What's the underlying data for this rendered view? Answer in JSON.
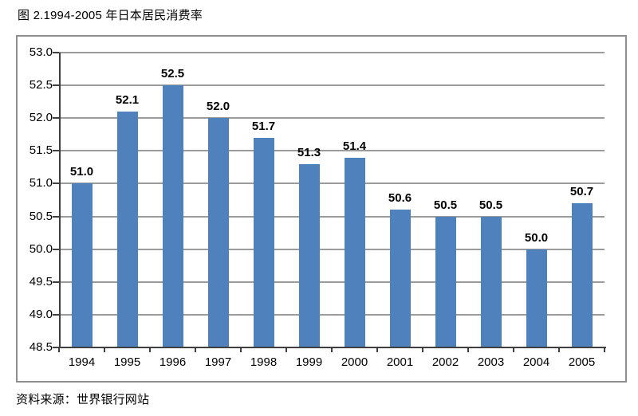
{
  "title": "图 2.1994-2005 年日本居民消费率",
  "source": "资料来源：世界银行网站",
  "chart_data": {
    "type": "bar",
    "title": "图 2.1994-2005 年日本居民消费率",
    "categories": [
      "1994",
      "1995",
      "1996",
      "1997",
      "1998",
      "1999",
      "2000",
      "2001",
      "2002",
      "2003",
      "2004",
      "2005"
    ],
    "values": [
      51.0,
      52.1,
      52.5,
      52.0,
      51.7,
      51.3,
      51.4,
      50.6,
      50.5,
      50.5,
      50.0,
      50.7
    ],
    "data_labels": [
      "51.0",
      "52.1",
      "52.5",
      "52.0",
      "51.7",
      "51.3",
      "51.4",
      "50.6",
      "50.5",
      "50.5",
      "50.0",
      "50.7"
    ],
    "xlabel": "",
    "ylabel": "",
    "ylim": [
      48.5,
      53.0
    ],
    "ytick_step": 0.5,
    "ytick_labels": [
      "48.5",
      "49.0",
      "49.5",
      "50.0",
      "50.5",
      "51.0",
      "51.5",
      "52.0",
      "52.5",
      "53.0"
    ],
    "grid": true,
    "legend": "none",
    "colors": {
      "bar": "#4F81BD",
      "gridline": "#9b9b9b",
      "axis": "#3f3f3f",
      "chart_border": "#8f8f8f",
      "text": "#000000"
    },
    "source_note": "资料来源：世界银行网站"
  }
}
